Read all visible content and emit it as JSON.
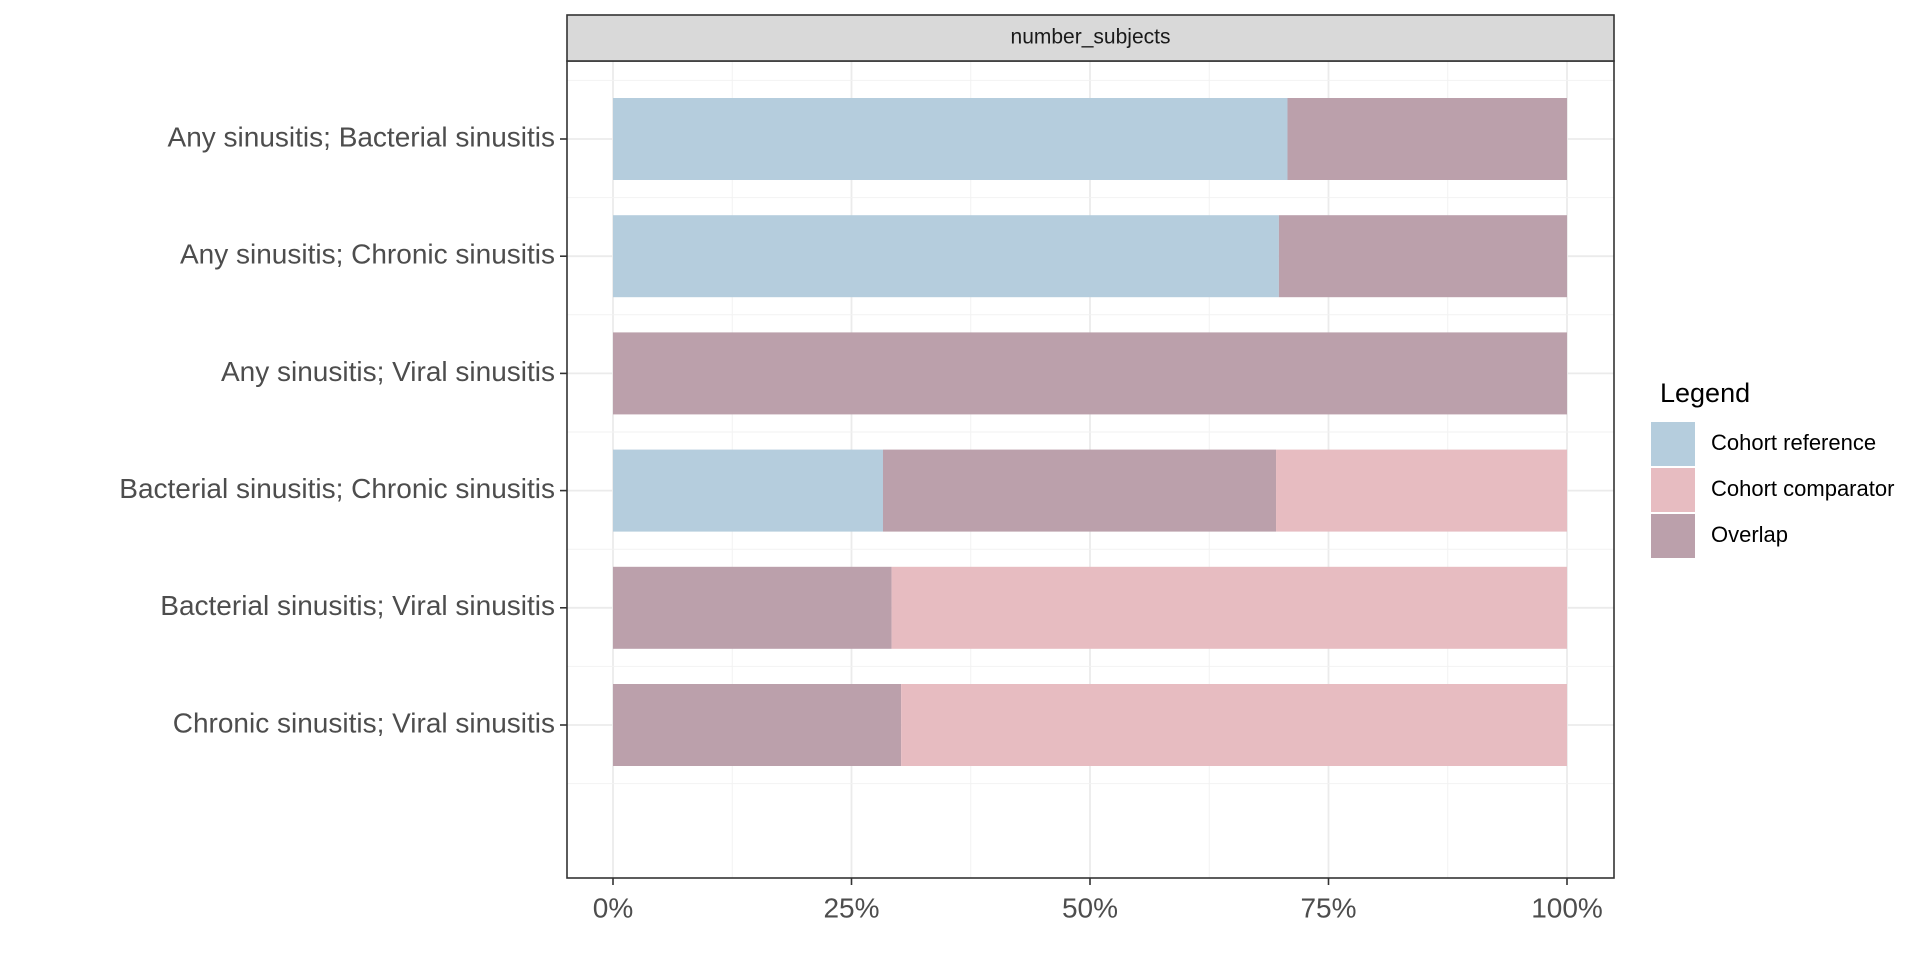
{
  "chart_data": {
    "type": "bar",
    "orientation": "horizontal",
    "stacked": "percent",
    "facet_label": "number_subjects",
    "categories": [
      "Any sinusitis; Bacterial sinusitis",
      "Any sinusitis; Chronic sinusitis",
      "Any sinusitis; Viral sinusitis",
      "Bacterial sinusitis; Chronic sinusitis",
      "Bacterial sinusitis; Viral sinusitis",
      "Chronic sinusitis; Viral sinusitis"
    ],
    "series": [
      {
        "name": "Cohort reference",
        "color": "#b5cddd",
        "values": [
          0.707,
          0.698,
          0.0,
          0.283,
          0.0,
          0.0
        ]
      },
      {
        "name": "Overlap",
        "color": "#bba0ab",
        "values": [
          0.293,
          0.302,
          1.0,
          0.412,
          0.292,
          0.302
        ]
      },
      {
        "name": "Cohort comparator",
        "color": "#e7bcc1",
        "values": [
          0.0,
          0.0,
          0.0,
          0.305,
          0.708,
          0.698
        ]
      }
    ],
    "xlim": [
      0,
      1
    ],
    "x_ticks": [
      "0%",
      "25%",
      "50%",
      "75%",
      "100%"
    ],
    "xlabel": "",
    "ylabel": "",
    "grid": true,
    "legend": {
      "title": "Legend",
      "position": "right",
      "items": [
        {
          "label": "Cohort reference",
          "color": "#b5cddd"
        },
        {
          "label": "Cohort comparator",
          "color": "#e7bcc1"
        },
        {
          "label": "Overlap",
          "color": "#bba0ab"
        }
      ]
    }
  }
}
